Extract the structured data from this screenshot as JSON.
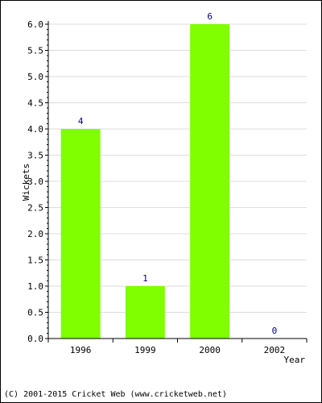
{
  "chart_data": {
    "type": "bar",
    "categories": [
      "1996",
      "1999",
      "2000",
      "2002"
    ],
    "values": [
      4,
      1,
      6,
      0
    ],
    "data_labels": [
      "4",
      "1",
      "6",
      "0"
    ],
    "xlabel": "Year",
    "ylabel": "Wickets",
    "ylim": [
      0,
      6.0
    ],
    "yticks": [
      "0.0",
      "0.5",
      "1.0",
      "1.5",
      "2.0",
      "2.5",
      "3.0",
      "3.5",
      "4.0",
      "4.5",
      "5.0",
      "5.5",
      "6.0"
    ],
    "grid": true,
    "bar_color": "#80ff00",
    "label_color": "#000080"
  },
  "footer": "(C) 2001-2015 Cricket Web (www.cricketweb.net)"
}
